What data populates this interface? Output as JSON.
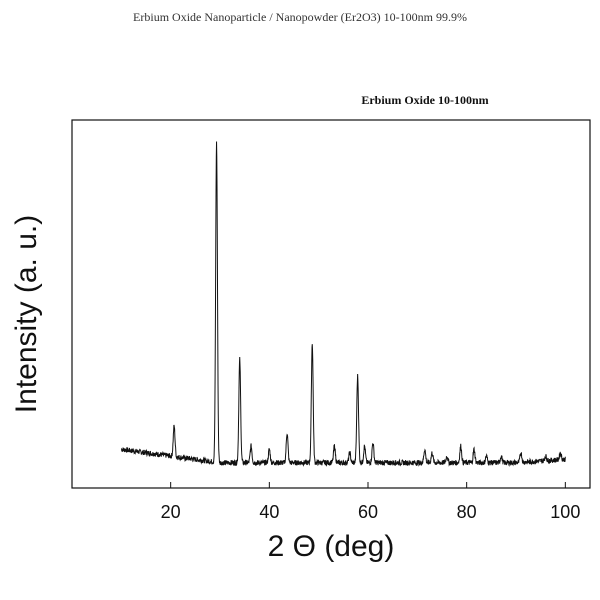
{
  "page_title": "Erbium Oxide Nanoparticle / Nanopowder (Er2O3) 10-100nm 99.9%",
  "chart_data": {
    "type": "line",
    "title": "Erbium Oxide 10-100nm",
    "xlabel": "2 Θ (deg)",
    "ylabel": "Intensity (a. u.)",
    "xlim": [
      0,
      105
    ],
    "ylim": [
      0,
      100
    ],
    "xticks": [
      20,
      40,
      60,
      80,
      100
    ],
    "grid": false,
    "legend": "none",
    "line_color": "#111111",
    "baseline": [
      [
        10,
        8
      ],
      [
        20,
        6
      ],
      [
        30,
        4
      ],
      [
        40,
        4
      ],
      [
        50,
        4
      ],
      [
        60,
        4
      ],
      [
        70,
        4
      ],
      [
        80,
        4
      ],
      [
        90,
        4
      ],
      [
        100,
        5
      ]
    ],
    "peaks": [
      {
        "x": 20.7,
        "y": 15
      },
      {
        "x": 29.3,
        "y": 100
      },
      {
        "x": 34.0,
        "y": 35
      },
      {
        "x": 36.3,
        "y": 9
      },
      {
        "x": 40.0,
        "y": 8
      },
      {
        "x": 43.6,
        "y": 13
      },
      {
        "x": 48.7,
        "y": 40
      },
      {
        "x": 53.2,
        "y": 9
      },
      {
        "x": 56.3,
        "y": 7
      },
      {
        "x": 57.9,
        "y": 30
      },
      {
        "x": 59.3,
        "y": 9
      },
      {
        "x": 61.0,
        "y": 10
      },
      {
        "x": 71.5,
        "y": 8
      },
      {
        "x": 73.0,
        "y": 7
      },
      {
        "x": 76.0,
        "y": 6
      },
      {
        "x": 78.8,
        "y": 9
      },
      {
        "x": 81.5,
        "y": 8
      },
      {
        "x": 84.0,
        "y": 6
      },
      {
        "x": 87.0,
        "y": 6
      },
      {
        "x": 91.0,
        "y": 7
      },
      {
        "x": 96.0,
        "y": 6
      },
      {
        "x": 99.0,
        "y": 7
      }
    ]
  }
}
